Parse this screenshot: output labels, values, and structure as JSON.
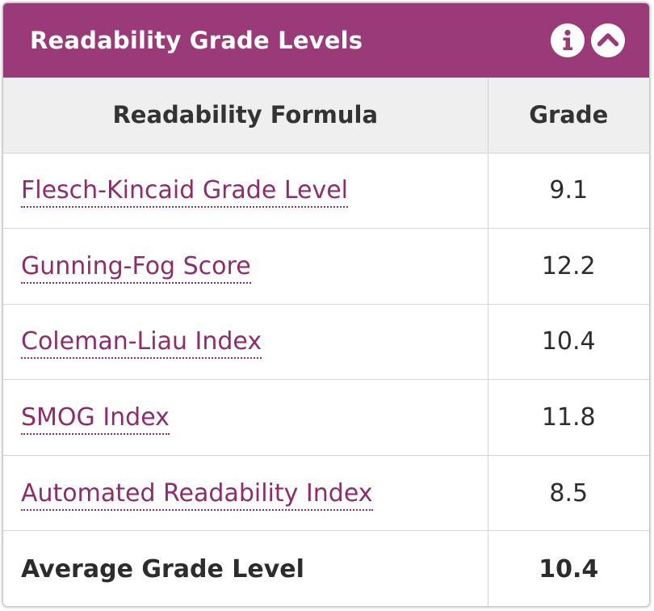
{
  "header": {
    "title": "Readability Grade Levels",
    "info_icon": "info-icon",
    "collapse_icon": "chevron-up-icon"
  },
  "colors": {
    "header_bg": "#9b3a78",
    "link": "#8e2c6c",
    "table_header_bg": "#efefef"
  },
  "table": {
    "columns": [
      "Readability Formula",
      "Grade"
    ],
    "rows": [
      {
        "formula": "Flesch-Kincaid Grade Level",
        "grade": "9.1"
      },
      {
        "formula": "Gunning-Fog Score",
        "grade": "12.2"
      },
      {
        "formula": "Coleman-Liau Index",
        "grade": "10.4"
      },
      {
        "formula": "SMOG Index",
        "grade": "11.8"
      },
      {
        "formula": "Automated Readability Index",
        "grade": "8.5"
      }
    ],
    "average": {
      "label": "Average Grade Level",
      "grade": "10.4"
    }
  }
}
